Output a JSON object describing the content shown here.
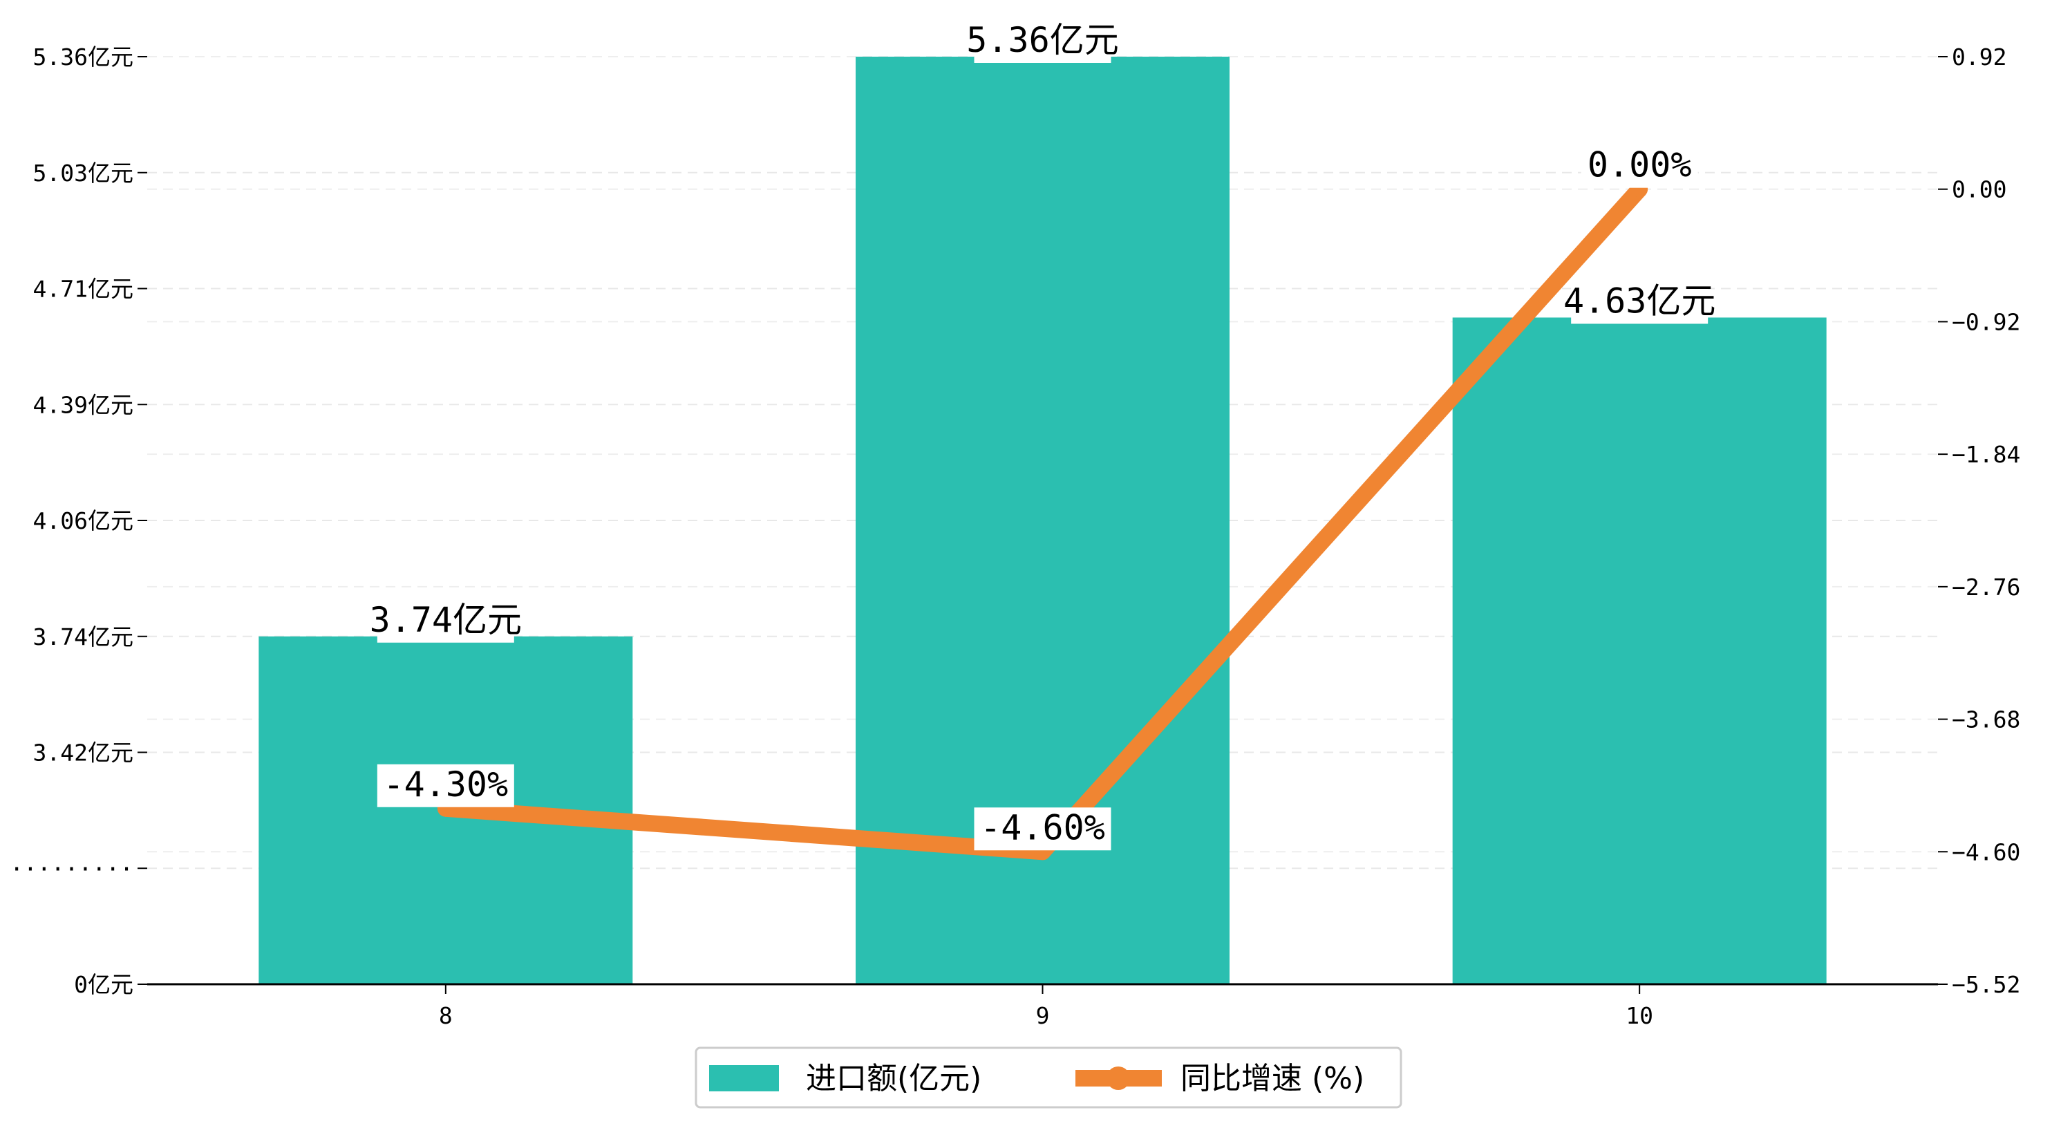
{
  "chart_data": {
    "type": "bar",
    "categories": [
      "8",
      "9",
      "10"
    ],
    "series": [
      {
        "name": "进口额(亿元)",
        "kind": "bar",
        "axis": "left",
        "color": "#2bbfb0",
        "values": [
          3.74,
          5.36,
          4.63
        ],
        "data_labels": [
          "3.74亿元",
          "5.36亿元",
          "4.63亿元"
        ]
      },
      {
        "name": "同比增速 (%)",
        "kind": "line",
        "axis": "right",
        "color": "#f08532",
        "values": [
          -4.3,
          -4.6,
          0.0
        ],
        "data_labels": [
          "-4.30%",
          "-4.60%",
          "0.00%"
        ]
      }
    ],
    "y_left": {
      "tick_labels": [
        "0亿元",
        "·········",
        "3.42亿元",
        "3.74亿元",
        "4.06亿元",
        "4.39亿元",
        "4.71亿元",
        "5.03亿元",
        "5.36亿元"
      ],
      "broken_axis": true
    },
    "y_right": {
      "ylim": [
        -5.52,
        0.92
      ],
      "tick_values": [
        0.92,
        0.0,
        -0.92,
        -1.84,
        -2.76,
        -3.68,
        -4.6,
        -5.52
      ],
      "tick_labels": [
        "0.92",
        "0.00",
        "−0.92",
        "−1.84",
        "−2.76",
        "−3.68",
        "−4.60",
        "−5.52"
      ]
    },
    "grid": true,
    "legend": {
      "placement": "bottom-center",
      "entries": [
        "进口额(亿元)",
        "同比增速 (%)"
      ]
    }
  }
}
